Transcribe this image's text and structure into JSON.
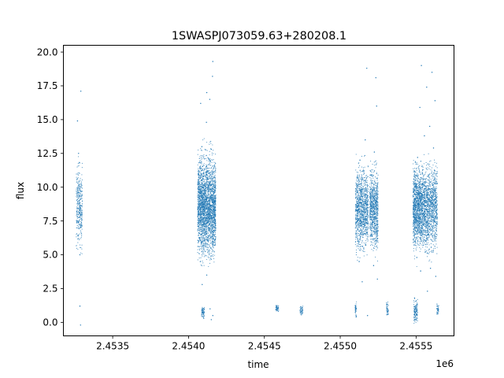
{
  "chart_data": {
    "type": "scatter",
    "title": "1SWASPJ073059.63+280208.1",
    "xlabel": "time",
    "ylabel": "flux",
    "x_offset_label": "1e6",
    "xlim": [
      2453175,
      2455750
    ],
    "ylim": [
      -1.0,
      20.5
    ],
    "x_ticks": [
      2453500,
      2454000,
      2454500,
      2455000,
      2455500
    ],
    "x_tick_labels": [
      "2.4535",
      "2.4540",
      "2.4545",
      "2.4550",
      "2.4555"
    ],
    "y_ticks": [
      0.0,
      2.5,
      5.0,
      7.5,
      10.0,
      12.5,
      15.0,
      17.5,
      20.0
    ],
    "y_tick_labels": [
      "0.0",
      "2.5",
      "5.0",
      "7.5",
      "10.0",
      "12.5",
      "15.0",
      "17.5",
      "20.0"
    ],
    "grid": false,
    "legend": "none",
    "point_color": "#1f77b4",
    "series": [
      {
        "points": [
          [
            2453270,
            8.8
          ],
          [
            2453272,
            7.4
          ],
          [
            2453274,
            9.6
          ],
          [
            2453276,
            6.2
          ],
          [
            2453278,
            10.4
          ],
          [
            2453280,
            8.1
          ],
          [
            2453282,
            11.8
          ],
          [
            2453284,
            5.0
          ],
          [
            2453286,
            9.1
          ],
          [
            2453288,
            7.0
          ],
          [
            2453268,
            14.9
          ],
          [
            2453290,
            17.1
          ],
          [
            2453284,
            1.2
          ],
          [
            2453288,
            -0.2
          ],
          [
            2453275,
            12.5
          ],
          [
            2454070,
            8.0
          ],
          [
            2454075,
            11.5
          ],
          [
            2454078,
            4.5
          ],
          [
            2454082,
            9.5
          ],
          [
            2454085,
            6.5
          ],
          [
            2454088,
            13.0
          ],
          [
            2454090,
            2.8
          ],
          [
            2454095,
            10.0
          ],
          [
            2454098,
            7.2
          ],
          [
            2454100,
            8.9
          ],
          [
            2454105,
            12.1
          ],
          [
            2454108,
            5.8
          ],
          [
            2454110,
            9.9
          ],
          [
            2454115,
            7.6
          ],
          [
            2454118,
            14.8
          ],
          [
            2454120,
            3.5
          ],
          [
            2454125,
            10.7
          ],
          [
            2454128,
            6.1
          ],
          [
            2454130,
            8.4
          ],
          [
            2454135,
            11.0
          ],
          [
            2454140,
            16.5
          ],
          [
            2454142,
            1.0
          ],
          [
            2454145,
            9.3
          ],
          [
            2454148,
            4.9
          ],
          [
            2454150,
            12.8
          ],
          [
            2454155,
            7.9
          ],
          [
            2454158,
            18.2
          ],
          [
            2454160,
            0.5
          ],
          [
            2454162,
            10.2
          ],
          [
            2454165,
            6.8
          ],
          [
            2454080,
            16.2
          ],
          [
            2454120,
            17.0
          ],
          [
            2454160,
            19.3
          ],
          [
            2454100,
            0.3
          ],
          [
            2454150,
            0.2
          ],
          [
            2454095,
            0.9
          ],
          [
            2454100,
            0.6
          ],
          [
            2454580,
            1.2
          ],
          [
            2454585,
            0.9
          ],
          [
            2454590,
            1.0
          ],
          [
            2454740,
            1.0
          ],
          [
            2454745,
            0.7
          ],
          [
            2454750,
            1.1
          ],
          [
            2455110,
            8.5
          ],
          [
            2455115,
            6.0
          ],
          [
            2455120,
            10.5
          ],
          [
            2455125,
            4.5
          ],
          [
            2455130,
            12.0
          ],
          [
            2455135,
            7.5
          ],
          [
            2455140,
            9.8
          ],
          [
            2455145,
            3.0
          ],
          [
            2455150,
            11.2
          ],
          [
            2455155,
            5.5
          ],
          [
            2455160,
            8.8
          ],
          [
            2455165,
            13.5
          ],
          [
            2455170,
            7.0
          ],
          [
            2455175,
            18.8
          ],
          [
            2455180,
            0.5
          ],
          [
            2455200,
            8.6
          ],
          [
            2455205,
            10.9
          ],
          [
            2455210,
            6.4
          ],
          [
            2455215,
            9.7
          ],
          [
            2455220,
            4.2
          ],
          [
            2455225,
            12.6
          ],
          [
            2455230,
            7.8
          ],
          [
            2455235,
            18.1
          ],
          [
            2455240,
            16.0
          ],
          [
            2455245,
            3.2
          ],
          [
            2455100,
            1.1
          ],
          [
            2455105,
            0.4
          ],
          [
            2455310,
            1.3
          ],
          [
            2455315,
            0.6
          ],
          [
            2455490,
            8.2
          ],
          [
            2455495,
            6.8
          ],
          [
            2455500,
            10.0
          ],
          [
            2455505,
            4.8
          ],
          [
            2455510,
            12.2
          ],
          [
            2455515,
            7.4
          ],
          [
            2455520,
            9.5
          ],
          [
            2455525,
            15.9
          ],
          [
            2455530,
            3.8
          ],
          [
            2455535,
            19.0
          ],
          [
            2455540,
            8.9
          ],
          [
            2455545,
            11.3
          ],
          [
            2455550,
            6.1
          ],
          [
            2455555,
            13.8
          ],
          [
            2455560,
            5.2
          ],
          [
            2455565,
            9.9
          ],
          [
            2455570,
            17.4
          ],
          [
            2455575,
            2.3
          ],
          [
            2455580,
            10.8
          ],
          [
            2455585,
            7.1
          ],
          [
            2455590,
            14.5
          ],
          [
            2455595,
            4.0
          ],
          [
            2455600,
            9.2
          ],
          [
            2455605,
            18.5
          ],
          [
            2455610,
            6.7
          ],
          [
            2455615,
            12.9
          ],
          [
            2455620,
            8.3
          ],
          [
            2455625,
            16.4
          ],
          [
            2455630,
            3.4
          ],
          [
            2455635,
            10.4
          ],
          [
            2455490,
            1.8
          ],
          [
            2455495,
            0.2
          ],
          [
            2455500,
            1.0
          ],
          [
            2455505,
            0.6
          ],
          [
            2455640,
            1.2
          ],
          [
            2455645,
            0.9
          ]
        ]
      }
    ],
    "clusters": [
      {
        "x": [
          2453260,
          2453300
        ],
        "y": [
          3.5,
          12.5
        ],
        "center": 8.6,
        "spread": 1.4,
        "n": 320
      },
      {
        "x": [
          2454060,
          2454180
        ],
        "y": [
          2.0,
          14.5
        ],
        "center": 8.6,
        "spread": 1.7,
        "n": 2600
      },
      {
        "x": [
          2454085,
          2454105
        ],
        "y": [
          0.3,
          1.2
        ],
        "center": 0.8,
        "spread": 0.25,
        "n": 60
      },
      {
        "x": [
          2454575,
          2454595
        ],
        "y": [
          0.7,
          1.3
        ],
        "center": 1.0,
        "spread": 0.15,
        "n": 40
      },
      {
        "x": [
          2454735,
          2454755
        ],
        "y": [
          0.5,
          1.2
        ],
        "center": 0.9,
        "spread": 0.2,
        "n": 40
      },
      {
        "x": [
          2455100,
          2455185
        ],
        "y": [
          3.5,
          12.5
        ],
        "center": 8.4,
        "spread": 1.4,
        "n": 1100
      },
      {
        "x": [
          2455195,
          2455250
        ],
        "y": [
          4.0,
          12.0
        ],
        "center": 8.4,
        "spread": 1.3,
        "n": 800
      },
      {
        "x": [
          2455098,
          2455108
        ],
        "y": [
          0.3,
          1.6
        ],
        "center": 0.9,
        "spread": 0.3,
        "n": 40
      },
      {
        "x": [
          2455305,
          2455318
        ],
        "y": [
          0.4,
          1.6
        ],
        "center": 1.0,
        "spread": 0.3,
        "n": 40
      },
      {
        "x": [
          2455480,
          2455540
        ],
        "y": [
          4.0,
          12.0
        ],
        "center": 8.5,
        "spread": 1.4,
        "n": 1100
      },
      {
        "x": [
          2455540,
          2455640
        ],
        "y": [
          4.0,
          12.5
        ],
        "center": 8.5,
        "spread": 1.5,
        "n": 1300
      },
      {
        "x": [
          2455485,
          2455510
        ],
        "y": [
          -0.1,
          2.0
        ],
        "center": 0.8,
        "spread": 0.4,
        "n": 120
      },
      {
        "x": [
          2455635,
          2455650
        ],
        "y": [
          0.6,
          1.4
        ],
        "center": 1.0,
        "spread": 0.2,
        "n": 40
      }
    ]
  }
}
